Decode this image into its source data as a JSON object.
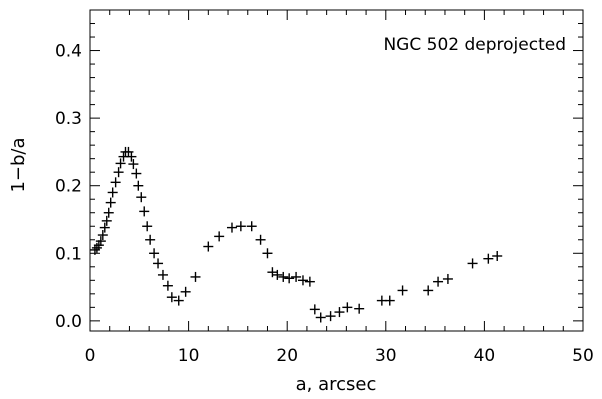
{
  "chart_data": {
    "type": "scatter",
    "title": "",
    "annotation": "NGC 502 deprojected",
    "xlabel": "a, arcsec",
    "ylabel": "1−b/a",
    "xlim": [
      0,
      50
    ],
    "ylim": [
      -0.015,
      0.46
    ],
    "xticks": [
      0,
      10,
      20,
      30,
      40,
      50
    ],
    "xtick_labels": [
      "0",
      "10",
      "20",
      "30",
      "40",
      "50"
    ],
    "yticks": [
      0.0,
      0.1,
      0.2,
      0.3,
      0.4
    ],
    "ytick_labels": [
      "0.0",
      "0.1",
      "0.2",
      "0.3",
      "0.4"
    ],
    "x_minor_step": 2,
    "y_minor_step": 0.02,
    "grid": false,
    "marker": "plus",
    "series": [
      {
        "x": [
          0.5,
          0.7,
          0.9,
          1.1,
          1.3,
          1.5,
          1.7,
          1.9,
          2.1,
          2.3,
          2.6,
          2.9,
          3.1,
          3.4,
          3.6,
          3.9,
          4.2,
          4.4,
          4.7,
          4.9,
          5.2,
          5.5,
          5.8,
          6.1,
          6.5,
          6.9,
          7.4,
          7.9,
          8.3,
          9.0,
          9.7,
          10.7,
          12.0,
          13.1,
          14.4,
          15.3,
          16.4,
          17.3,
          18.0,
          18.5,
          19.0,
          19.6,
          20.2,
          20.9,
          21.6,
          22.3,
          22.8,
          23.4,
          24.4,
          25.3,
          26.1,
          27.3,
          29.6,
          30.4,
          31.7,
          34.3,
          35.3,
          36.3,
          38.8,
          40.4,
          41.3
        ],
        "y": [
          0.105,
          0.108,
          0.112,
          0.118,
          0.127,
          0.138,
          0.148,
          0.16,
          0.175,
          0.19,
          0.205,
          0.22,
          0.233,
          0.243,
          0.25,
          0.25,
          0.243,
          0.232,
          0.218,
          0.2,
          0.183,
          0.162,
          0.14,
          0.12,
          0.1,
          0.085,
          0.068,
          0.052,
          0.035,
          0.03,
          0.043,
          0.065,
          0.11,
          0.125,
          0.138,
          0.14,
          0.14,
          0.12,
          0.1,
          0.072,
          0.068,
          0.065,
          0.063,
          0.065,
          0.06,
          0.058,
          0.017,
          0.005,
          0.007,
          0.013,
          0.02,
          0.018,
          0.03,
          0.03,
          0.045,
          0.045,
          0.058,
          0.062,
          0.085,
          0.092,
          0.096
        ]
      }
    ]
  }
}
